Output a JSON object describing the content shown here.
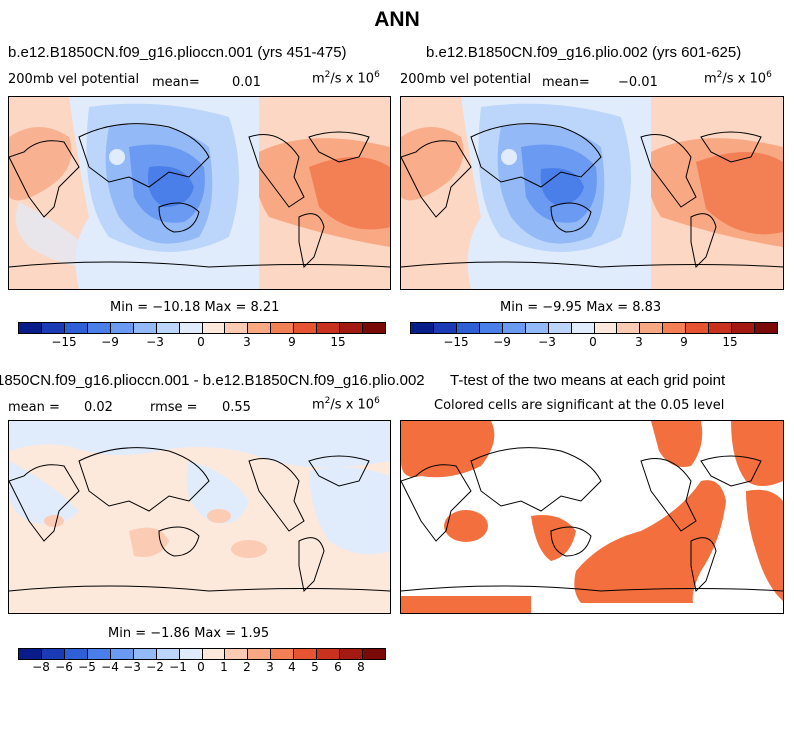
{
  "title": "ANN",
  "panels": [
    {
      "title": "b.e12.B1850CN.f09_g16.plioccn.001 (yrs 451-475)",
      "field": "200mb vel potential",
      "mean_label": "mean=",
      "mean": "0.01",
      "units": "m",
      "units_exp": "2",
      "units_rest": "/s x 10",
      "units_exp2": "6",
      "minmax": "Min = −10.18 Max =  8.21",
      "colors": [
        "#081d8a",
        "#1a3bb5",
        "#2f5fd6",
        "#4a7ee8",
        "#6a9af2",
        "#93b9f7",
        "#bcd5fa",
        "#e0ecfc",
        "#fde8dc",
        "#fbcbb3",
        "#f8a984",
        "#f37f55",
        "#e65432",
        "#c8321e",
        "#a31a12",
        "#7a0a08"
      ],
      "ticks": [
        "−15",
        "−9",
        "−3",
        "0",
        "3",
        "9",
        "15"
      ]
    },
    {
      "title": "b.e12.B1850CN.f09_g16.plio.002 (yrs 601-625)",
      "field": "200mb vel potential",
      "mean_label": "mean=",
      "mean": "−0.01",
      "units": "m",
      "units_exp": "2",
      "units_rest": "/s x 10",
      "units_exp2": "6",
      "minmax": "Min =  −9.95 Max =  8.83",
      "ticks": [
        "−15",
        "−9",
        "−3",
        "0",
        "3",
        "9",
        "15"
      ]
    },
    {
      "title": "1850CN.f09_g16.plioccn.001 - b.e12.B1850CN.f09_g16.plio.002",
      "mean_label": "mean =",
      "mean": "0.02",
      "rmse_label": "rmse =",
      "rmse": "0.55",
      "units": "m",
      "units_exp": "2",
      "units_rest": "/s x 10",
      "units_exp2": "6",
      "minmax": "Min =  −1.86 Max =   1.95",
      "colors": [
        "#081d8a",
        "#1a3bb5",
        "#2f5fd6",
        "#4a7ee8",
        "#6a9af2",
        "#93b9f7",
        "#bcd5fa",
        "#e0ecfc",
        "#fde8dc",
        "#fbcbb3",
        "#f8a984",
        "#f37f55",
        "#e65432",
        "#c8321e",
        "#a31a12",
        "#7a0a08"
      ],
      "ticks": [
        "−8",
        "−6",
        "−5",
        "−4",
        "−3",
        "−2",
        "−1",
        "0",
        "1",
        "2",
        "3",
        "4",
        "5",
        "6",
        "8"
      ]
    },
    {
      "title": "T-test of the two means at each grid point",
      "subtitle": "Colored cells are significant at the 0.05 level",
      "sig_color": "#f36f3d"
    }
  ]
}
